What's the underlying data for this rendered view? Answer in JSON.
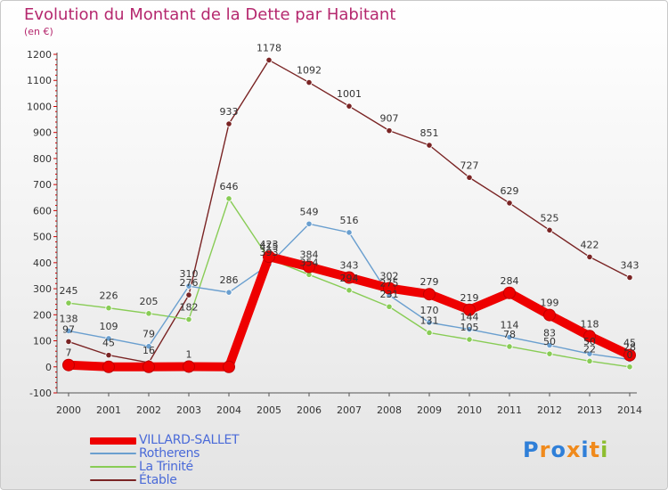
{
  "title": "Evolution du Montant de la Dette par Habitant",
  "unit": "(en €)",
  "logo": {
    "letters": [
      {
        "ch": "P",
        "color": "#2f7fd8"
      },
      {
        "ch": "r",
        "color": "#f08a1c"
      },
      {
        "ch": "o",
        "color": "#2f7fd8"
      },
      {
        "ch": "x",
        "color": "#f08a1c"
      },
      {
        "ch": "i",
        "color": "#2f7fd8"
      },
      {
        "ch": "t",
        "color": "#f08a1c"
      },
      {
        "ch": "i",
        "color": "#8dbd2f"
      }
    ]
  },
  "chart_data": {
    "type": "line",
    "title": "Evolution du Montant de la Dette par Habitant",
    "ylabel": "(en €)",
    "xlabel": "",
    "categories": [
      "2000",
      "2001",
      "2002",
      "2003",
      "2004",
      "2005",
      "2006",
      "2007",
      "2008",
      "2009",
      "2010",
      "2011",
      "2012",
      "2013",
      "2014"
    ],
    "ylim": [
      -100,
      1200
    ],
    "yticks": [
      -100,
      0,
      100,
      200,
      300,
      400,
      500,
      600,
      700,
      800,
      900,
      1000,
      1100,
      1200
    ],
    "grid": false,
    "legend_position": "bottom-left",
    "series": [
      {
        "name": "VILLARD-SALLET",
        "color": "#ee0000",
        "values": [
          7,
          0,
          0,
          1,
          0,
          423,
          384,
          343,
          302,
          279,
          219,
          284,
          199,
          118,
          45
        ]
      },
      {
        "name": "Rotherens",
        "color": "#6a9fcf",
        "values": [
          138,
          109,
          79,
          310,
          286,
          393,
          549,
          516,
          275,
          170,
          144,
          114,
          83,
          50,
          28
        ]
      },
      {
        "name": "La Trinité",
        "color": "#88cc55",
        "values": [
          245,
          226,
          205,
          182,
          646,
          415,
          354,
          294,
          231,
          131,
          105,
          78,
          50,
          22,
          0
        ]
      },
      {
        "name": "Étable",
        "color": "#7a2424",
        "values": [
          97,
          45,
          16,
          276,
          933,
          1178,
          1092,
          1001,
          907,
          851,
          727,
          629,
          525,
          422,
          343
        ]
      }
    ],
    "data_labels": {
      "VILLARD-SALLET": [
        "7",
        "",
        "",
        "1",
        "",
        "423",
        "384",
        "343",
        "302",
        "279",
        "219",
        "284",
        "199",
        "118",
        "45"
      ],
      "Rotherens": [
        "138",
        "109",
        "79",
        "310",
        "286",
        "393",
        "549",
        "516",
        "275",
        "170",
        "144",
        "114",
        "83",
        "50",
        "28"
      ],
      "La Trinité": [
        "245",
        "226",
        "205",
        "182",
        "646",
        "415",
        "354",
        "294",
        "231",
        "131",
        "105",
        "78",
        "50",
        "22",
        "0"
      ],
      "Étable": [
        "97",
        "45",
        "16",
        "276",
        "933",
        "1178",
        "1092",
        "1001",
        "907",
        "851",
        "727",
        "629",
        "525",
        "422",
        "343"
      ]
    }
  }
}
